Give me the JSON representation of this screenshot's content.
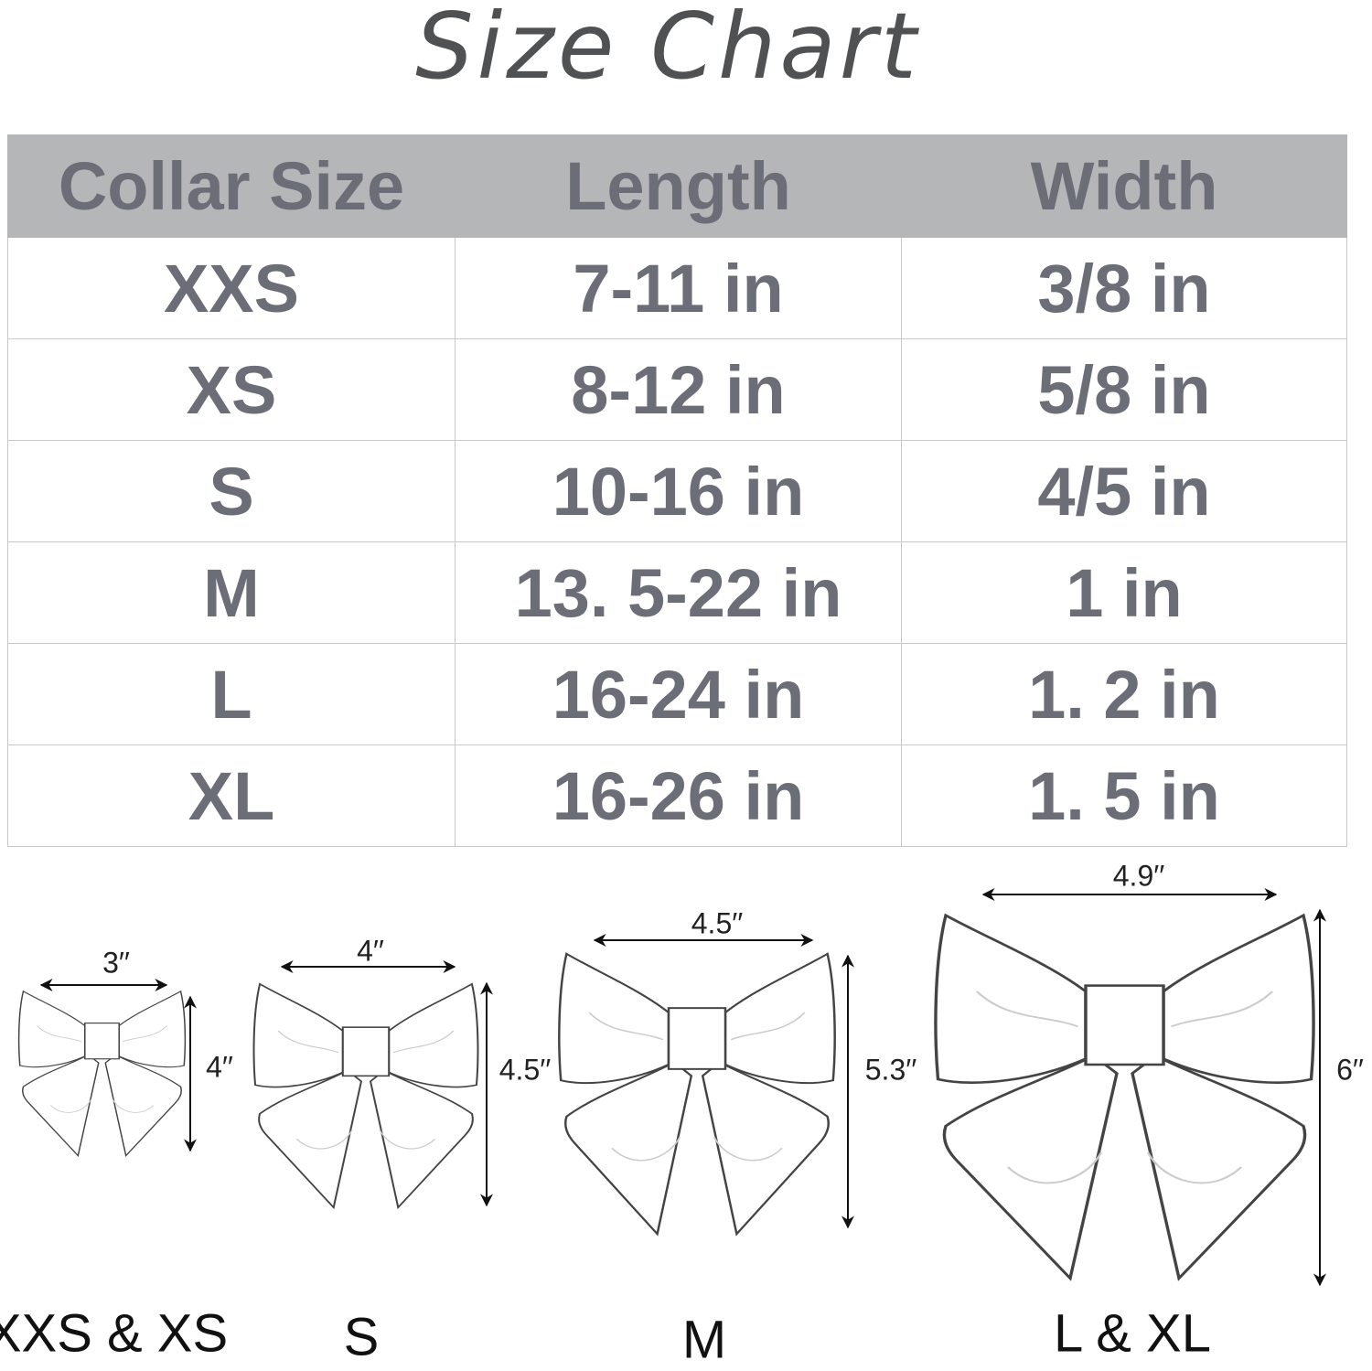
{
  "title": "Size Chart",
  "table": {
    "headers": [
      "Collar Size",
      "Length",
      "Width"
    ],
    "rows": [
      [
        "XXS",
        "7-11 in",
        "3/8 in"
      ],
      [
        "XS",
        "8-12 in",
        "5/8 in"
      ],
      [
        "S",
        "10-16 in",
        "4/5 in"
      ],
      [
        "M",
        "13. 5-22 in",
        "1 in"
      ],
      [
        "L",
        "16-24 in",
        "1. 2 in"
      ],
      [
        "XL",
        "16-26 in",
        "1. 5 in"
      ]
    ]
  },
  "bows": [
    {
      "label": "XXS & XS",
      "width": "3′′",
      "height": "4′′"
    },
    {
      "label": "S",
      "width": "4′′",
      "height": "4.5′′"
    },
    {
      "label": "M",
      "width": "4.5′′",
      "height": "5.3′′"
    },
    {
      "label": "L & XL",
      "width": "4.9′′",
      "height": "6′′"
    }
  ],
  "colors": {
    "header_bg": "#b5b6b8",
    "text": "#6b6e77",
    "title": "#505152"
  }
}
